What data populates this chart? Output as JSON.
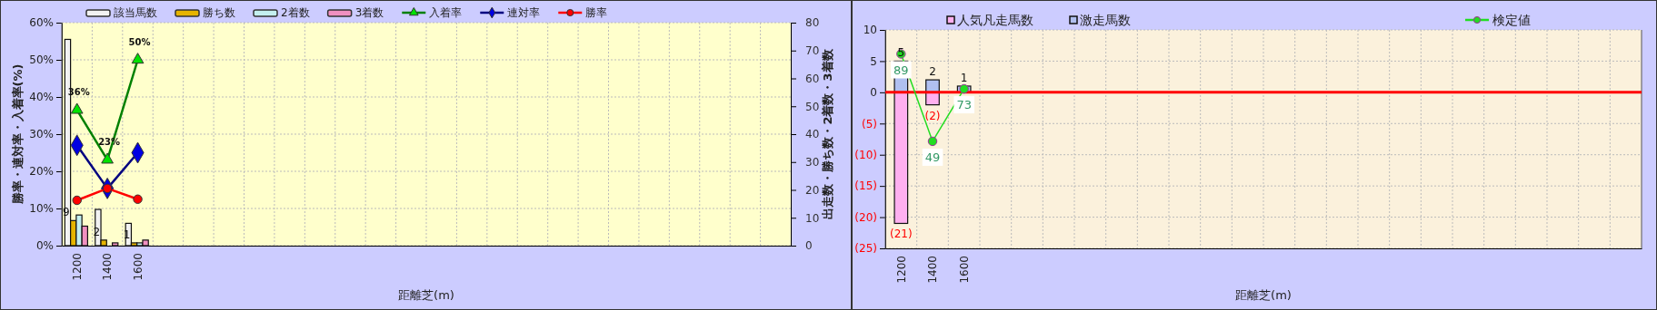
{
  "chart_data": [
    {
      "type": "bar",
      "categories": [
        "1200",
        "1400",
        "1600",
        null,
        null,
        null,
        null,
        null,
        null,
        null,
        null,
        null,
        null,
        null,
        null,
        null,
        null,
        null,
        null,
        null,
        null,
        null,
        null,
        null
      ],
      "series": [
        {
          "name": "該当馬数",
          "color": "#f2f2f2",
          "axis": "y2",
          "values": [
            74,
            13,
            8,
            null,
            null,
            null,
            null,
            null,
            null,
            null,
            null,
            null,
            null,
            null,
            null,
            null,
            null,
            null,
            null,
            null,
            null,
            null,
            null,
            null
          ]
        },
        {
          "name": "勝ち数",
          "color": "#e6b400",
          "axis": "y2",
          "values": [
            9,
            2,
            1,
            null,
            null,
            null,
            null,
            null,
            null,
            null,
            null,
            null,
            null,
            null,
            null,
            null,
            null,
            null,
            null,
            null,
            null,
            null,
            null,
            null
          ],
          "value_labels": [
            "9",
            "2",
            "1",
            null,
            null,
            null,
            null,
            null,
            null,
            null,
            null,
            null,
            null,
            null,
            null,
            null,
            null,
            null,
            null,
            null,
            null,
            null,
            null,
            null
          ]
        },
        {
          "name": "2着数",
          "color": "#c4f0f0",
          "axis": "y2",
          "values": [
            11,
            0,
            1,
            null,
            null,
            null,
            null,
            null,
            null,
            null,
            null,
            null,
            null,
            null,
            null,
            null,
            null,
            null,
            null,
            null,
            null,
            null,
            null,
            null
          ]
        },
        {
          "name": "3着数",
          "color": "#f090c0",
          "axis": "y2",
          "values": [
            7,
            1,
            2,
            null,
            null,
            null,
            null,
            null,
            null,
            null,
            null,
            null,
            null,
            null,
            null,
            null,
            null,
            null,
            null,
            null,
            null,
            null,
            null,
            null
          ]
        },
        {
          "name": "入着率",
          "type": "line",
          "color": "#008000",
          "marker": "triangle",
          "values": [
            36.5,
            23.1,
            50,
            null,
            null,
            null,
            null,
            null,
            null,
            null,
            null,
            null,
            null,
            null,
            null,
            null,
            null,
            null,
            null,
            null,
            null,
            null,
            null,
            null
          ],
          "value_labels": [
            "36%",
            "23%",
            "50%",
            null,
            null,
            null,
            null,
            null,
            null,
            null,
            null,
            null,
            null,
            null,
            null,
            null,
            null,
            null,
            null,
            null,
            null,
            null,
            null,
            null
          ]
        },
        {
          "name": "連対率",
          "type": "line",
          "color": "#000080",
          "marker": "diamond",
          "values": [
            27,
            15.4,
            25,
            null,
            null,
            null,
            null,
            null,
            null,
            null,
            null,
            null,
            null,
            null,
            null,
            null,
            null,
            null,
            null,
            null,
            null,
            null,
            null,
            null
          ]
        },
        {
          "name": "勝率",
          "type": "line",
          "color": "#ff0000",
          "marker": "circle",
          "values": [
            12.2,
            15.4,
            12.5,
            null,
            null,
            null,
            null,
            null,
            null,
            null,
            null,
            null,
            null,
            null,
            null,
            null,
            null,
            null,
            null,
            null,
            null,
            null,
            null,
            null
          ]
        }
      ],
      "xlabel": "距離芝(m)",
      "ylabel": "勝率・連対率・入着率(%)",
      "y2label": "出走数・勝ち数・2着数・3着数",
      "ylim": [
        0,
        60
      ],
      "yticks": [
        {
          "value": 0,
          "label": "0%"
        },
        {
          "value": 10,
          "label": "10%"
        },
        {
          "value": 20,
          "label": "20%"
        },
        {
          "value": 30,
          "label": "30%"
        },
        {
          "value": 40,
          "label": "40%"
        },
        {
          "value": 50,
          "label": "50%"
        },
        {
          "value": 60,
          "label": "60%"
        }
      ],
      "y2lim": [
        0,
        80
      ],
      "y2ticks": [
        0,
        10,
        20,
        30,
        40,
        50,
        60,
        70,
        80
      ],
      "grid": true,
      "legend": "top"
    },
    {
      "type": "bar",
      "stacked": true,
      "categories": [
        "1200",
        "1400",
        "1600",
        null,
        null,
        null,
        null,
        null,
        null,
        null,
        null,
        null,
        null,
        null,
        null,
        null,
        null,
        null,
        null,
        null,
        null,
        null,
        null,
        null
      ],
      "series": [
        {
          "name": "人気凡走馬数",
          "color": "#ffb0f0",
          "values": [
            -21,
            -2,
            0,
            null,
            null,
            null,
            null,
            null,
            null,
            null,
            null,
            null,
            null,
            null,
            null,
            null,
            null,
            null,
            null,
            null,
            null,
            null,
            null,
            null
          ],
          "value_labels": [
            "(21)",
            "(2)",
            null,
            null,
            null,
            null,
            null,
            null,
            null,
            null,
            null,
            null,
            null,
            null,
            null,
            null,
            null,
            null,
            null,
            null,
            null,
            null,
            null,
            null
          ]
        },
        {
          "name": "激走馬数",
          "color": "#b0c0f0",
          "values": [
            5,
            2,
            1,
            null,
            null,
            null,
            null,
            null,
            null,
            null,
            null,
            null,
            null,
            null,
            null,
            null,
            null,
            null,
            null,
            null,
            null,
            null,
            null,
            null
          ],
          "value_labels": [
            "5",
            "2",
            "1",
            null,
            null,
            null,
            null,
            null,
            null,
            null,
            null,
            null,
            null,
            null,
            null,
            null,
            null,
            null,
            null,
            null,
            null,
            null,
            null,
            null
          ]
        },
        {
          "name": "検定値",
          "type": "line",
          "color": "#22dd22",
          "marker": "circle",
          "axis": "y2",
          "values": [
            89,
            49,
            73,
            null,
            null,
            null,
            null,
            null,
            null,
            null,
            null,
            null,
            null,
            null,
            null,
            null,
            null,
            null,
            null,
            null,
            null,
            null,
            null,
            null
          ],
          "value_labels": [
            "89",
            "49",
            "73",
            null,
            null,
            null,
            null,
            null,
            null,
            null,
            null,
            null,
            null,
            null,
            null,
            null,
            null,
            null,
            null,
            null,
            null,
            null,
            null,
            null
          ]
        }
      ],
      "xlabel": "距離芝(m)",
      "ylim": [
        -25,
        10
      ],
      "yticks": [
        {
          "value": -25,
          "label": "(25)"
        },
        {
          "value": -20,
          "label": "(20)"
        },
        {
          "value": -15,
          "label": "(15)"
        },
        {
          "value": -10,
          "label": "(10)"
        },
        {
          "value": -5,
          "label": "(5)"
        },
        0,
        5,
        10
      ],
      "y2lim": [
        0,
        100
      ],
      "tick_labels": "xy",
      "ref_lines": [
        {
          "axis": "y",
          "value": 0,
          "color": "#ff0000"
        }
      ],
      "grid": true,
      "legend": "top"
    }
  ]
}
